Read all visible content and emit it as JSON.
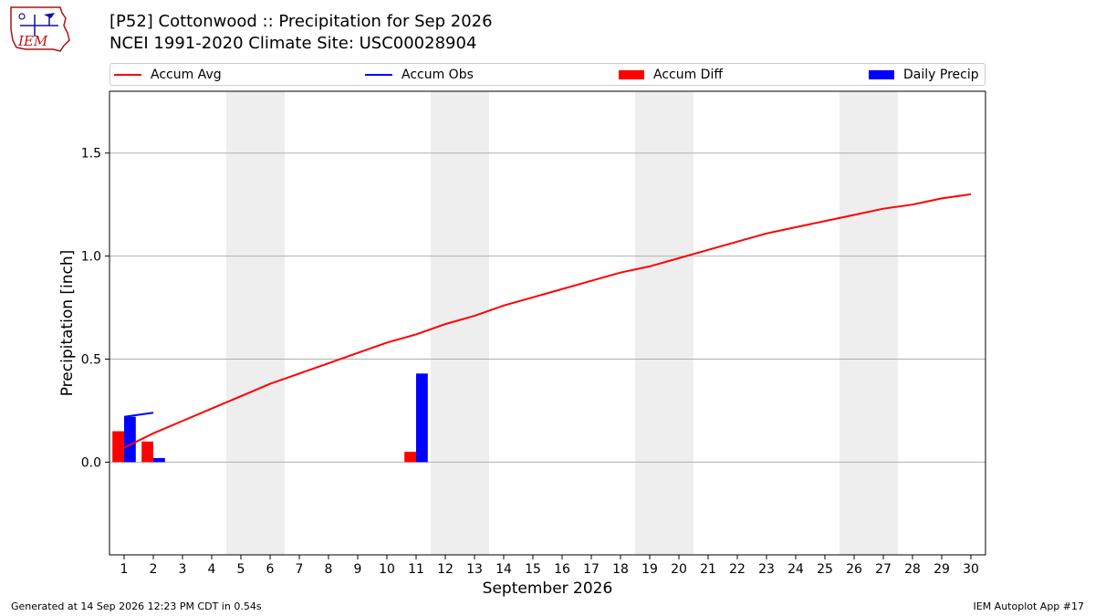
{
  "header": {
    "logo_text": "IEM",
    "title_line1": "[P52] Cottonwood :: Precipitation for Sep 2026",
    "title_line2": "NCEI 1991-2020 Climate Site: USC00028904"
  },
  "legend": {
    "items": [
      {
        "label": "Accum Avg",
        "color": "#ff0000",
        "kind": "line"
      },
      {
        "label": "Accum Obs",
        "color": "#0000ff",
        "kind": "line"
      },
      {
        "label": "Accum Diff",
        "color": "#ff0000",
        "kind": "box"
      },
      {
        "label": "Daily Precip",
        "color": "#0000ff",
        "kind": "box"
      }
    ]
  },
  "footer": {
    "generated": "Generated at 14 Sep 2026 12:23 PM CDT in 0.54s",
    "app": "IEM Autoplot App #17"
  },
  "chart_data": {
    "type": "bar",
    "xlabel": "September 2026",
    "ylabel": "Precipitation [inch]",
    "x": [
      1,
      2,
      3,
      4,
      5,
      6,
      7,
      8,
      9,
      10,
      11,
      12,
      13,
      14,
      15,
      16,
      17,
      18,
      19,
      20,
      21,
      22,
      23,
      24,
      25,
      26,
      27,
      28,
      29,
      30
    ],
    "xlim": [
      0.5,
      30.5
    ],
    "ylim": [
      -0.45,
      1.8
    ],
    "yticks": [
      0.0,
      0.5,
      1.0,
      1.5
    ],
    "ytick_labels": [
      "0.0",
      "0.5",
      "1.0",
      "1.5"
    ],
    "grid": "horizontal",
    "weekend_shading": [
      [
        5,
        6
      ],
      [
        12,
        13
      ],
      [
        19,
        20
      ],
      [
        26,
        27
      ]
    ],
    "series": [
      {
        "name": "Accum Avg",
        "type": "line",
        "color": "#ff0000",
        "x": [
          1,
          2,
          3,
          4,
          5,
          6,
          7,
          8,
          9,
          10,
          11,
          12,
          13,
          14,
          15,
          16,
          17,
          18,
          19,
          20,
          21,
          22,
          23,
          24,
          25,
          26,
          27,
          28,
          29,
          30
        ],
        "values": [
          0.07,
          0.14,
          0.2,
          0.26,
          0.32,
          0.38,
          0.43,
          0.48,
          0.53,
          0.58,
          0.62,
          0.67,
          0.71,
          0.76,
          0.8,
          0.84,
          0.88,
          0.92,
          0.95,
          0.99,
          1.03,
          1.07,
          1.11,
          1.14,
          1.17,
          1.2,
          1.23,
          1.25,
          1.28,
          1.3
        ]
      },
      {
        "name": "Accum Obs",
        "type": "line",
        "color": "#0000ff",
        "x": [
          1,
          2
        ],
        "values": [
          0.22,
          0.24
        ]
      },
      {
        "name": "Accum Diff",
        "type": "bar",
        "color": "#ff0000",
        "x": [
          1,
          2,
          11
        ],
        "values": [
          0.15,
          0.1,
          0.05
        ]
      },
      {
        "name": "Daily Precip",
        "type": "bar",
        "color": "#0000ff",
        "x": [
          1,
          2,
          11
        ],
        "values": [
          0.22,
          0.02,
          0.43
        ]
      }
    ]
  }
}
